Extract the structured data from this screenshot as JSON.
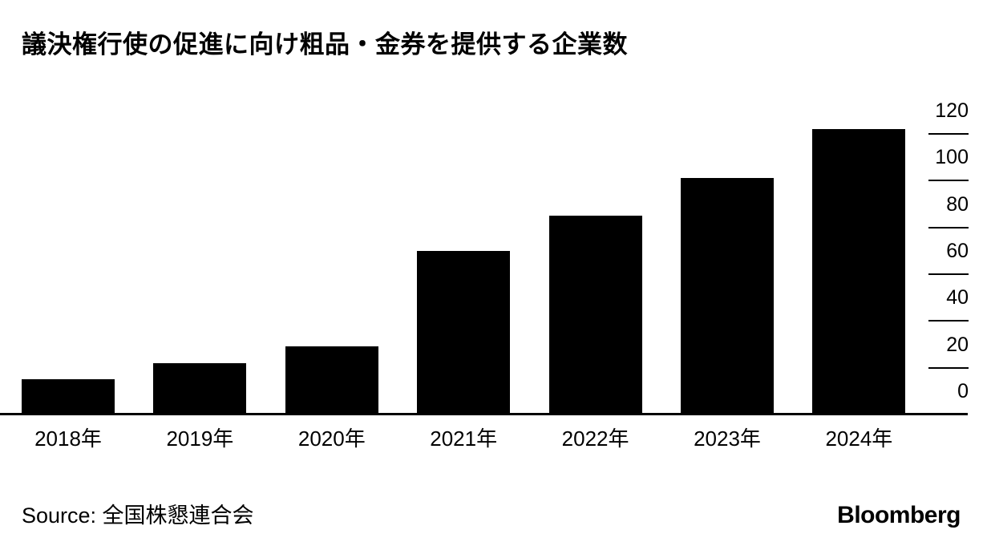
{
  "title": "議決権行使の促進に向け粗品・金券を提供する企業数",
  "source": {
    "full": "Source: 全国株懇連合会"
  },
  "branding": {
    "logo": "Bloomberg"
  },
  "colors": {
    "bar": "#000000",
    "axis": "#000000",
    "background": "#ffffff",
    "text": "#000000"
  },
  "chart_data": {
    "type": "bar",
    "title": "議決権行使の促進に向け粗品・金券を提供する企業数",
    "categories": [
      "2018年",
      "2019年",
      "2020年",
      "2021年",
      "2022年",
      "2023年",
      "2024年"
    ],
    "values": [
      15,
      22,
      29,
      70,
      85,
      101,
      122
    ],
    "xlabel": "",
    "ylabel": "",
    "ylim": [
      0,
      120
    ],
    "yticks": [
      0,
      20,
      40,
      60,
      80,
      100,
      120
    ],
    "ytick_labels": [
      "0",
      "20",
      "40",
      "60",
      "80",
      "100",
      "120"
    ],
    "grid": false,
    "legend_position": "none",
    "axis_side": "right",
    "bar_color": "#000000"
  }
}
